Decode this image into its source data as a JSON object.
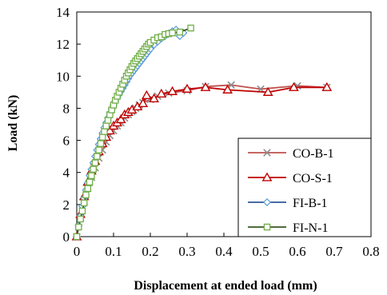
{
  "chart_data": {
    "type": "line",
    "xlabel": "Displacement at ended load (mm)",
    "ylabel": "Load (kN)",
    "xlim": [
      0,
      0.8
    ],
    "ylim": [
      0,
      14
    ],
    "x_ticks": [
      "0",
      "0.1",
      "0.2",
      "0.3",
      "0.4",
      "0.5",
      "0.6",
      "0.7",
      "0.8"
    ],
    "y_ticks": [
      "0",
      "2",
      "4",
      "6",
      "8",
      "10",
      "12",
      "14"
    ],
    "grid": false,
    "legend_position": "bottom-right",
    "series": [
      {
        "name": "CO-B-1",
        "color": "#c0504d",
        "marker_color": "#8c8c8c",
        "marker": "x",
        "x": [
          0,
          0.01,
          0.02,
          0.03,
          0.04,
          0.05,
          0.06,
          0.07,
          0.08,
          0.09,
          0.1,
          0.11,
          0.12,
          0.13,
          0.14,
          0.15,
          0.16,
          0.17,
          0.18,
          0.2,
          0.22,
          0.25,
          0.3,
          0.35,
          0.42,
          0.5,
          0.6,
          0.68
        ],
        "y": [
          0,
          1.2,
          2.2,
          3.0,
          3.7,
          4.3,
          4.9,
          5.4,
          5.9,
          6.3,
          6.6,
          6.9,
          7.1,
          7.4,
          7.6,
          7.8,
          8.0,
          8.2,
          8.35,
          8.55,
          8.75,
          8.95,
          9.1,
          9.35,
          9.45,
          9.2,
          9.4,
          9.3
        ]
      },
      {
        "name": "CO-S-1",
        "color": "#c00000",
        "marker_color": "#c00000",
        "marker": "triangle",
        "x": [
          0,
          0.01,
          0.02,
          0.03,
          0.04,
          0.05,
          0.06,
          0.07,
          0.08,
          0.09,
          0.1,
          0.11,
          0.12,
          0.13,
          0.14,
          0.15,
          0.165,
          0.18,
          0.19,
          0.21,
          0.23,
          0.26,
          0.3,
          0.35,
          0.41,
          0.52,
          0.59,
          0.68
        ],
        "y": [
          0,
          1.4,
          2.5,
          3.4,
          4.1,
          4.7,
          5.3,
          5.8,
          6.2,
          6.6,
          6.9,
          7.1,
          7.3,
          7.6,
          7.75,
          7.9,
          8.1,
          8.3,
          8.8,
          8.6,
          8.9,
          9.05,
          9.2,
          9.3,
          9.15,
          9.0,
          9.3,
          9.3
        ]
      },
      {
        "name": "FI-B-1",
        "color": "#2f5597",
        "marker_color": "#5b9bd5",
        "marker": "diamond",
        "x": [
          0,
          0.005,
          0.01,
          0.015,
          0.02,
          0.025,
          0.03,
          0.035,
          0.04,
          0.045,
          0.05,
          0.055,
          0.06,
          0.065,
          0.07,
          0.075,
          0.08,
          0.085,
          0.09,
          0.095,
          0.1,
          0.105,
          0.11,
          0.115,
          0.12,
          0.125,
          0.13,
          0.135,
          0.14,
          0.145,
          0.15,
          0.155,
          0.16,
          0.165,
          0.17,
          0.175,
          0.18,
          0.185,
          0.19,
          0.195,
          0.2,
          0.21,
          0.22,
          0.23,
          0.24,
          0.25,
          0.26,
          0.27,
          0.28,
          0.29
        ],
        "y": [
          0,
          0.7,
          1.3,
          1.9,
          2.4,
          2.9,
          3.35,
          3.8,
          4.2,
          4.6,
          5.0,
          5.4,
          5.75,
          6.1,
          6.45,
          6.8,
          7.1,
          7.4,
          7.7,
          7.95,
          8.2,
          8.45,
          8.65,
          8.85,
          9.05,
          9.25,
          9.45,
          9.65,
          9.85,
          10.05,
          10.2,
          10.35,
          10.5,
          10.65,
          10.8,
          10.95,
          11.1,
          11.25,
          11.4,
          11.55,
          11.7,
          11.95,
          12.15,
          12.35,
          12.5,
          12.65,
          12.8,
          12.9,
          12.5,
          12.7
        ]
      },
      {
        "name": "FI-N-1",
        "color": "#375623",
        "marker_color": "#70ad47",
        "marker": "square",
        "x": [
          0,
          0.005,
          0.01,
          0.015,
          0.02,
          0.025,
          0.03,
          0.035,
          0.04,
          0.045,
          0.05,
          0.055,
          0.06,
          0.065,
          0.07,
          0.075,
          0.08,
          0.085,
          0.09,
          0.095,
          0.1,
          0.105,
          0.11,
          0.115,
          0.12,
          0.125,
          0.13,
          0.135,
          0.14,
          0.145,
          0.15,
          0.155,
          0.16,
          0.165,
          0.17,
          0.175,
          0.18,
          0.185,
          0.19,
          0.195,
          0.2,
          0.21,
          0.22,
          0.23,
          0.24,
          0.25,
          0.26,
          0.28,
          0.31
        ],
        "y": [
          0,
          0.6,
          1.1,
          1.6,
          2.1,
          2.6,
          3.0,
          3.4,
          3.8,
          4.2,
          4.6,
          5.0,
          5.4,
          5.8,
          6.2,
          6.55,
          6.9,
          7.25,
          7.6,
          7.9,
          8.2,
          8.5,
          8.75,
          9.0,
          9.25,
          9.5,
          9.75,
          10.0,
          10.2,
          10.4,
          10.6,
          10.8,
          10.95,
          11.1,
          11.25,
          11.4,
          11.55,
          11.7,
          11.85,
          12.0,
          12.1,
          12.25,
          12.4,
          12.45,
          12.6,
          12.65,
          12.7,
          12.75,
          13.0
        ]
      }
    ]
  }
}
